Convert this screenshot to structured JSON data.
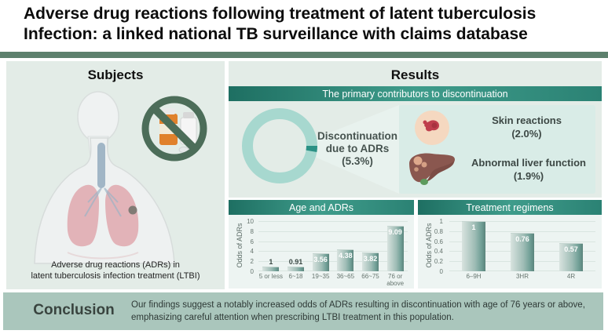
{
  "title": {
    "line1": "Adverse drug reactions following treatment of latent tuberculosis",
    "line2": "Infection: a linked national TB surveillance with claims database"
  },
  "subjects": {
    "heading": "Subjects",
    "caption_line1": "Adverse drug reactions (ADRs) in",
    "caption_line2": "latent tuberculosis infection treatment (LTBI)"
  },
  "results": {
    "heading": "Results",
    "banner": "The primary contributors to discontinuation",
    "donut": {
      "label_line1": "Discontinuation",
      "label_line2": "due to ADRs",
      "label_line3": "(5.3%)",
      "value_pct": 5.3
    },
    "contributors": [
      {
        "icon": "skin-rash-icon",
        "label_line1": "Skin reactions",
        "label_line2": "(2.0%)",
        "value_pct": 2.0
      },
      {
        "icon": "liver-icon",
        "label_line1": "Abnormal liver function",
        "label_line2": "(1.9%)",
        "value_pct": 1.9
      }
    ]
  },
  "chart_data": [
    {
      "type": "bar",
      "title": "Age and ADRs",
      "xlabel": "",
      "ylabel": "Odds of ADRs",
      "categories": [
        "5 or less",
        "6~18",
        "19~35",
        "36~65",
        "66~75",
        "76 or above"
      ],
      "values": [
        1,
        0.91,
        3.56,
        4.38,
        3.82,
        9.09
      ],
      "ylim": [
        0,
        10
      ],
      "yticks": [
        0,
        2,
        4,
        6,
        8,
        10
      ],
      "grid": true,
      "legend": false
    },
    {
      "type": "bar",
      "title": "Treatment regimens",
      "xlabel": "",
      "ylabel": "Odds of ADRs",
      "categories": [
        "6–9H",
        "3HR",
        "4R"
      ],
      "values": [
        1,
        0.76,
        0.57
      ],
      "ylim": [
        0,
        1
      ],
      "yticks": [
        0,
        0.2,
        0.4,
        0.6,
        0.8,
        1
      ],
      "grid": true,
      "legend": false
    }
  ],
  "conclusion": {
    "heading": "Conclusion",
    "text_line1": "Our findings suggest a notably increased odds of ADRs resulting in discontinuation with age of 76 years or above,",
    "text_line2": "emphasizing careful attention when prescribing LTBI treatment in this population."
  },
  "colors": {
    "banner_teal_dark": "#1e6f62",
    "banner_teal_light": "#3f9c8b",
    "divider_green": "#5d806d",
    "panel_mint": "#e3ece7",
    "callout_mint": "#d9ece7",
    "donut_ring": "#a7d8cf",
    "donut_segment": "#2b9185",
    "bar_teal": "#71a097",
    "conclusion_sage": "#aac6bc",
    "prohibition_green": "#4c6d59",
    "pill_bottle_orange": "#e0812c",
    "liver_brown": "#8a574f",
    "skin_peach": "#f5d8c0",
    "rash_red": "#bf3f4d"
  }
}
